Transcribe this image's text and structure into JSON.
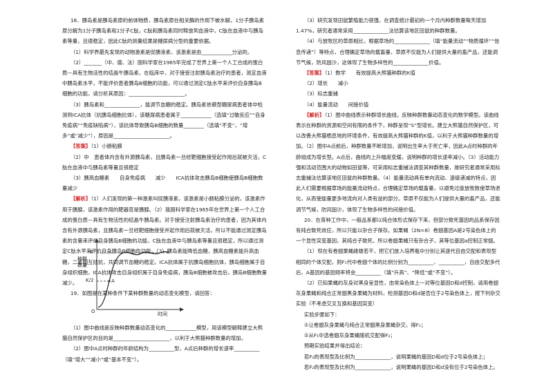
{
  "left_column": {
    "paragraphs": [
      "18．胰岛素是胰岛素原的前体物质，胰岛素原在相关酶的作用下被水解，1分子胰岛素原分解为1分子胰岛素和1分子C肽，C肽和胰岛素同时释放到血液中，C肽在血液中与胰岛素等量，且很稳定，因此C肽的测量结果是糖尿病分型的重要依据。",
      "（1）科学界最先发现的动物激素是促胰液素，该激素是由____________分泌的。",
      "（2）_______（中、德、法）国科学家在1965年完成了世界上第一个人工合成的蛋白质—具有生物活性的结晶牛胰岛素，在临床中，对于接受注射胰岛素治疗的患者，测定血液中胰岛素水平，不能评价患者胰岛B细胞的功能，可以通过测定C肽水平来评价自身胰岛B细胞的功能，请分析其原因：______________________。",
      "（3）胰岛素和______________，能调节血糖的稳定。胰岛素依赖型糖尿病患者体中检测到ICA抗体（抗胰岛细胞抗体），该糖尿病患者属于____________（选填“过敏反应”“自身免疫病”“免疫缺陷病”），该抗体导致胰岛B细胞的数量________（选填“不变”，“增多”或“减少”），原因是______________________。",
      {
        "tag": "【答案】",
        "text": "（1）小肠粘膜"
      },
      "（2）中　患者体内含有外源胰岛素，且胰岛素一旦经靶细胞接受起作用后就被灭活，C肽在血液中与胰岛素等量且很稳定",
      "（3）胰高血糖素　　自身免疫病　　减少　　ICA抗体攻击胰岛B细胞使胰岛B细胞数量减少",
      {
        "tag": "【解析】",
        "text": "（1）人们发现的第一种激素叫促胰液素，该激素是小肠粘膜分泌的，该激素作用于胰腺，该激素作用的靶器官是胰腺。（2）我国科学家在1965年在世界上第一个人工合成的蛋白质—具有生物活性的结晶牛胰岛素。对于接受注射胰岛素治疗的患者，因为其体内含有外源胰岛素，且胰岛素一旦经靶细胞接受并起作用后就被灭活，所以不能通过测定胰岛素的含量来评价自身胰岛B细胞的功能，C肽在血液中与胰岛素等量且很稳定，所以通过测定C肽水平来评价自身胰岛B细胞的功能。（3）胰岛素能降低血糖，胰高血糖素能升高血糖，二者相互拮抗，共同调节血糖的稳定。ICA抗体属于抗胰岛细胞抗体，胰岛细胞属于自身组织细胞，ICA抗体攻击自身组织属于自身免疫病，胰岛B细胞被攻击后，胰岛B细胞数量减少。"
      },
      "19．如图是在某种条件下某种群数量的动态变化模型，请回答："
    ],
    "paragraphs_after_figure": [
      "（1）图中曲线是反映种群数量动态变化的____________模型，用该模型解释建立大熊猫自然保护区的目的是______________________，以利于大熊猫种群数量的增加。",
      "（2）图中A点时种群的年龄结构为__________型，A点后种群的增长速率__________（填“增大”“减小”或“基本不变”）。"
    ]
  },
  "figure": {
    "y_label": "种群数量",
    "k_label": "K",
    "half_k_label": "K/2",
    "point_label": "A",
    "origin_label": "O",
    "x_label": "时间"
  },
  "right_column": {
    "paragraphs": [
      "（3）研究发现田鼠繁殖能力很强，在调查统计最初的一个月内种群数量每天增加1.47%，研究者通常采用______________法估算该地区田鼠的种群数量。",
      "（4）与放牧区的草原相比，根据草场的______________（填“能量流动”“物质循环”“信息传递”）等特点，合理确定草场的载畜量，草原不仅能为人们提供大量的畜产品，还能调节气候，防风固沙，这体现了生物多样性的______________价值。",
      {
        "tag": "【答案】",
        "text": "（1）数学　　有效提高大熊猫种群的K值"
      },
      "（2）增长　　减小",
      "（3）标志重捕",
      "（4）能量流动　　间接价值",
      {
        "tag": "【解析】",
        "text": "（1）图中曲线表示种群增长曲线，反映种群数量动态变化的数学模型。该曲线表示在种群的资源和空间有限的条件下，种群呈现“S”型增长。建立大熊猫自然保护区，可以改善大熊猫栖息地的环境条件，有效提高大熊猫种群的K值，以利于大熊猫种群数量的增加。（2）图中A点前后，种群数量不断增加，说明出生率大于死亡率，因此A点时种群的年龄组成为增长型。A点后，曲线的上升幅度变缓，说明种群的增长速率减小。（3）活动能力强和活动范围大的动物如田鼠等，可采用标志重捕法调查其种群数量，故研究者通常采用标志重捕法估算该地区田鼠的种群数量。（4）能量流动具有单向流动、逐级递减的特点，因此人们需要根据草场的能量流动特点，合理确定草场的载畜量，以避免过度放牧致使草场退化，从而使能量更多地流向对人类有益的部分。草原不仅能为人们提供大量的畜产品，还能调节气候，防风固沙，体现了生物多样性的间接价值。"
      },
      "20．在育种工作中，一般品系都以纯合体形式保存下来，但部分致死基因的品系保存因有纯合致死效应，所以只能以杂合子保存。如果蝇（2N=8）卷翅基因A是2号染色体上的一个显性突变基因，其纯合子致死，所以卷翅果蝇只有杂合子，其等位基因a控制正常翅。",
      "（1）现在有卷翅果蝇雌雄若干，把它们放入培养瓶中分别让其逐代自由交配和表现型相同的个体交配，则F₁代中卷翅个体的比例分别为__________、__________，自由交配多代后，A基因的基因频率将会__________（填“升高”、“降低”或“不变”）。",
      "（2）已知果蝇的灰身对黑身呈显性，由常染色体上一对等位基因D和d控制，请用卷翅灰身果蝇和纯合正常翅黑身果蝇为材料，检测基因D和d是否位于2号染色体上，按下列杂交实验（不考虑交叉互换和基因突变）",
      "实验步骤如下：",
      "①让卷翅灰身果蝇与纯合正常翅黑身果蝇杂交，得F₁；",
      "②从F₁中选卷翅灰身果蝇随机交配得F₂；",
      "预期实验结果并得出结论：",
      "若F₂的表现型及比例为______________，说明果蝇的基因D和d位于2号染色体上；",
      "若F₂的表现型及比例为______________，说明果蝇的基因D和d没有位于2号染色体上。"
    ]
  }
}
